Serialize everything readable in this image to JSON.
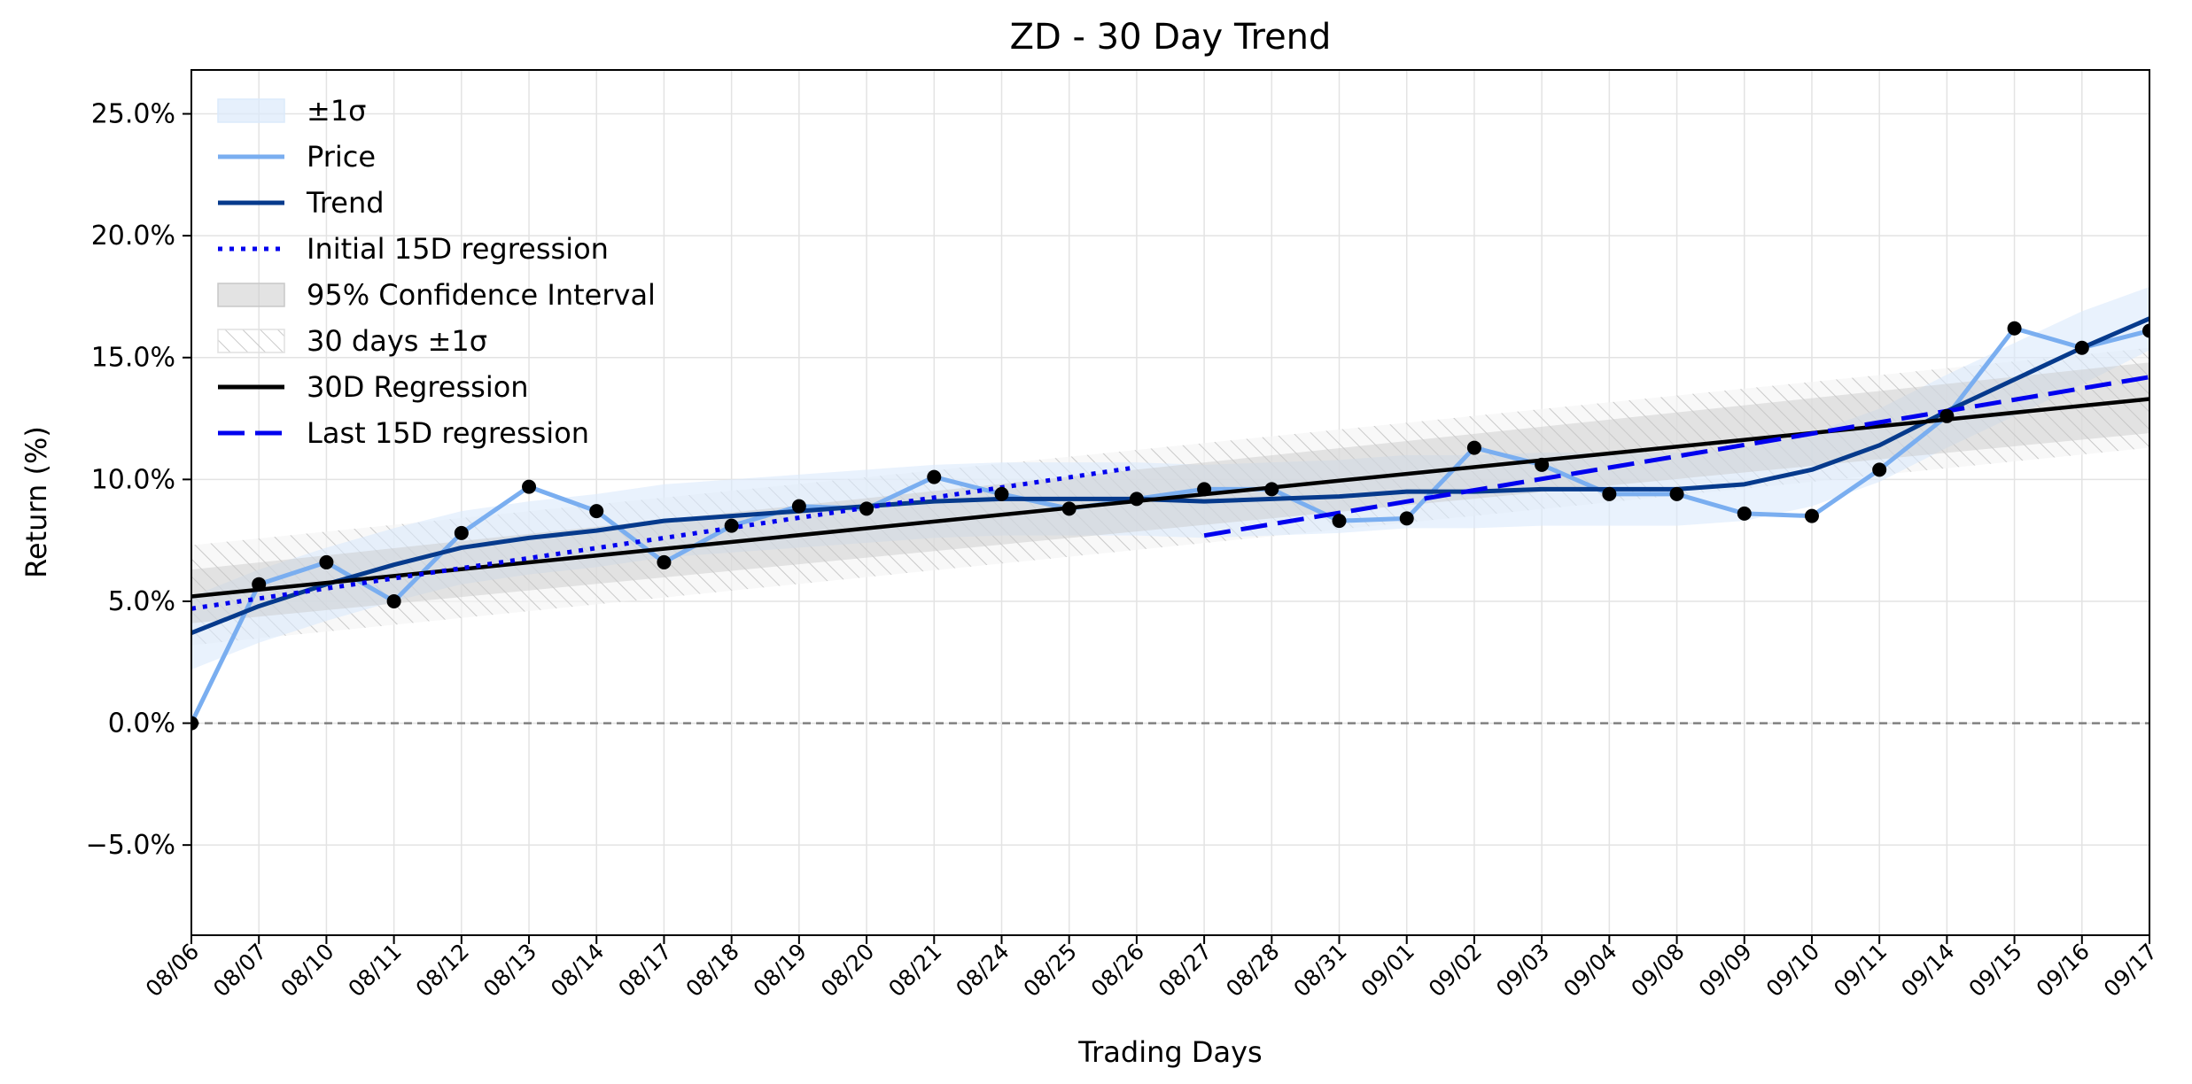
{
  "chart_data": {
    "type": "line",
    "title": "ZD - 30 Day Trend",
    "xlabel": "Trading Days",
    "ylabel": "Return (%)",
    "ylim": [
      -8.7,
      26.8
    ],
    "yticks": [
      -5.0,
      0.0,
      5.0,
      10.0,
      15.0,
      20.0,
      25.0
    ],
    "ytick_labels": [
      "−5.0%",
      "0.0%",
      "5.0%",
      "10.0%",
      "15.0%",
      "20.0%",
      "25.0%"
    ],
    "grid": true,
    "legend_position": "top-left",
    "x": [
      "08/06",
      "08/07",
      "08/10",
      "08/11",
      "08/12",
      "08/13",
      "08/14",
      "08/17",
      "08/18",
      "08/19",
      "08/20",
      "08/21",
      "08/24",
      "08/25",
      "08/26",
      "08/27",
      "08/28",
      "08/31",
      "09/01",
      "09/02",
      "09/03",
      "09/04",
      "09/08",
      "09/09",
      "09/10",
      "09/11",
      "09/14",
      "09/15",
      "09/16",
      "09/17"
    ],
    "legend": [
      "±1σ",
      "Price",
      "Trend",
      "Initial 15D regression",
      "95% Confidence Interval",
      "30 days ±1σ",
      "30D Regression",
      "Last 15D regression"
    ],
    "series": [
      {
        "name": "Price",
        "color": "#7aaef0",
        "values": [
          0.0,
          5.7,
          6.6,
          5.0,
          7.8,
          9.7,
          8.7,
          6.6,
          8.1,
          8.9,
          8.8,
          10.1,
          9.4,
          8.8,
          9.2,
          9.6,
          9.6,
          8.3,
          8.4,
          11.3,
          10.6,
          9.4,
          9.4,
          8.6,
          8.5,
          10.4,
          12.6,
          16.2,
          15.4,
          16.1
        ]
      },
      {
        "name": "Trend",
        "color": "#063a8c",
        "values": [
          3.7,
          4.8,
          5.7,
          6.5,
          7.2,
          7.6,
          7.9,
          8.3,
          8.5,
          8.7,
          8.9,
          9.1,
          9.2,
          9.2,
          9.2,
          9.1,
          9.2,
          9.3,
          9.5,
          9.5,
          9.6,
          9.6,
          9.6,
          9.8,
          10.4,
          11.4,
          12.8,
          14.1,
          15.4,
          16.6
        ]
      },
      {
        "name": "±1σ",
        "color": "#dbeafb",
        "upper": [
          5.2,
          6.3,
          7.2,
          8.0,
          8.7,
          9.1,
          9.4,
          9.8,
          10.0,
          10.2,
          10.4,
          10.6,
          10.7,
          10.7,
          10.7,
          10.6,
          10.7,
          10.8,
          11.0,
          11.0,
          11.1,
          11.1,
          11.1,
          11.3,
          11.9,
          12.9,
          14.3,
          15.6,
          16.9,
          17.9
        ],
        "lower": [
          2.2,
          3.3,
          4.2,
          5.0,
          5.7,
          6.1,
          6.4,
          6.8,
          7.0,
          7.2,
          7.4,
          7.6,
          7.7,
          7.7,
          7.7,
          7.6,
          7.7,
          7.8,
          8.0,
          8.0,
          8.1,
          8.1,
          8.1,
          8.3,
          8.9,
          9.9,
          11.3,
          12.6,
          13.9,
          15.3
        ]
      },
      {
        "name": "30D Regression",
        "color": "#000000",
        "start": 5.2,
        "end": 13.3
      },
      {
        "name": "95% Confidence Interval",
        "color": "#c8c8c8",
        "start_upper": 6.3,
        "start_lower": 4.1,
        "end_upper": 14.8,
        "end_lower": 11.9
      },
      {
        "name": "30 days ±1σ",
        "color": "#e8e8e8",
        "start_upper": 7.3,
        "start_lower": 3.2,
        "end_upper": 15.4,
        "end_lower": 11.3
      },
      {
        "name": "Initial 15D regression",
        "color": "#0000ee",
        "x_start": "08/06",
        "x_end": "08/26",
        "start": 4.7,
        "end": 10.5
      },
      {
        "name": "Last 15D regression",
        "color": "#0000ee",
        "x_start": "08/27",
        "x_end": "09/17",
        "start": 7.7,
        "end": 14.2
      }
    ],
    "reference_line": {
      "y": 0.0,
      "color": "#808080",
      "style": "dashed"
    }
  }
}
